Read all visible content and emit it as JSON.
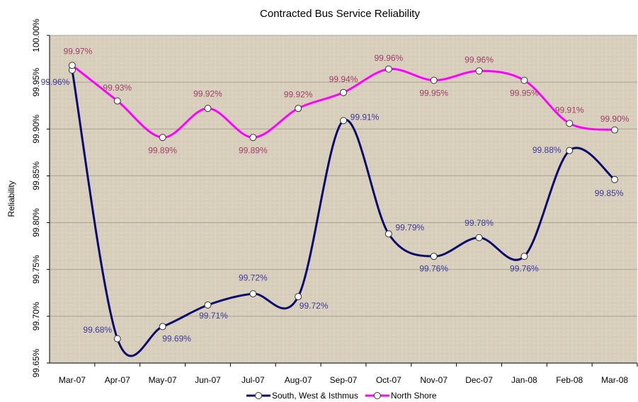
{
  "chart_data": {
    "type": "line",
    "title": "Contracted Bus Service Reliability",
    "y_label": "Reliability",
    "categories": [
      "Mar-07",
      "Apr-07",
      "May-07",
      "Jun-07",
      "Jul-07",
      "Aug-07",
      "Sep-07",
      "Oct-07",
      "Nov-07",
      "Dec-07",
      "Jan-08",
      "Feb-08",
      "Mar-08"
    ],
    "series": [
      {
        "name": "South, West & Isthmus",
        "color": "#0b0b6e",
        "label_color": "#3a3aa0",
        "values": [
          99.963,
          99.676,
          99.689,
          99.712,
          99.724,
          99.721,
          99.909,
          99.788,
          99.764,
          99.784,
          99.764,
          99.877,
          99.846
        ],
        "value_labels": [
          "99.96%",
          "99.68%",
          "99.69%",
          "99.71%",
          "99.72%",
          "99.72%",
          "99.91%",
          "99.79%",
          "99.76%",
          "99.78%",
          "99.76%",
          "99.88%",
          "99.85%"
        ]
      },
      {
        "name": "North Shore",
        "color": "#ff00ff",
        "label_color": "#a0406a",
        "values": [
          99.968,
          99.93,
          99.891,
          99.922,
          99.891,
          99.922,
          99.939,
          99.964,
          99.952,
          99.962,
          99.952,
          99.906,
          99.899
        ],
        "value_labels": [
          "99.97%",
          "99.93%",
          "99.89%",
          "99.92%",
          "99.89%",
          "99.92%",
          "99.94%",
          "99.96%",
          "99.95%",
          "99.96%",
          "99.95%",
          "99.91%",
          "99.90%"
        ]
      }
    ],
    "ylim": [
      99.65,
      100.0
    ],
    "yticks": [
      {
        "value": 99.65,
        "label": "99.65%"
      },
      {
        "value": 99.7,
        "label": "99.70%"
      },
      {
        "value": 99.75,
        "label": "99.75%"
      },
      {
        "value": 99.8,
        "label": "99.80%"
      },
      {
        "value": 99.85,
        "label": "99.85%"
      },
      {
        "value": 99.9,
        "label": "99.90%"
      },
      {
        "value": 99.95,
        "label": "99.95%"
      },
      {
        "value": 100.0,
        "label": "100.00%"
      }
    ],
    "grid": true
  }
}
